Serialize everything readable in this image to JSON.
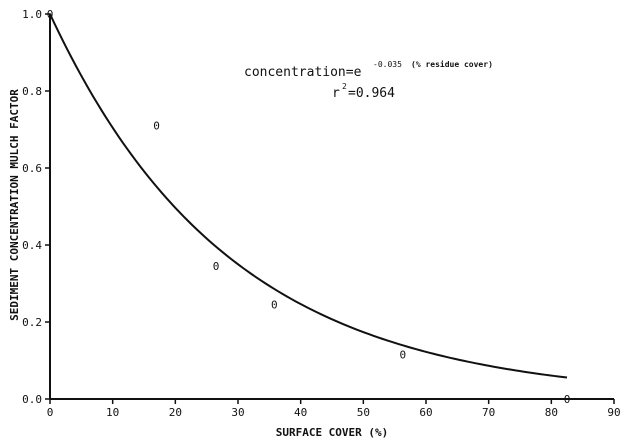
{
  "chart_data": {
    "type": "scatter",
    "xlabel": "SURFACE COVER (%)",
    "ylabel": "SEDIMENT CONCENTRATION MULCH FACTOR",
    "xlim": [
      0,
      90
    ],
    "ylim": [
      0,
      1.0
    ],
    "x_ticks": [
      "0",
      "10",
      "20",
      "30",
      "40",
      "50",
      "60",
      "70",
      "80",
      "90"
    ],
    "y_ticks": [
      "0.0",
      "0.2",
      "0.4",
      "0.6",
      "0.8",
      "1.0"
    ],
    "grid": false,
    "points": [
      {
        "x": 0,
        "y": 1.0,
        "marker": "0"
      },
      {
        "x": 17,
        "y": 0.71,
        "marker": "0"
      },
      {
        "x": 26.5,
        "y": 0.345,
        "marker": "0"
      },
      {
        "x": 35.8,
        "y": 0.245,
        "marker": "0"
      },
      {
        "x": 56.3,
        "y": 0.115,
        "marker": "0"
      },
      {
        "x": 82.5,
        "y": 0.0,
        "marker": "0"
      }
    ],
    "fit": {
      "coefficient": -0.035,
      "x_range": [
        0,
        82.5
      ]
    },
    "annotations": {
      "equation_main": "concentration=e",
      "equation_exponent": "-0.035",
      "equation_tail": "(% residue cover)",
      "r2_text": "r",
      "r2_sup": "2",
      "r2_value": "=0.964"
    }
  }
}
